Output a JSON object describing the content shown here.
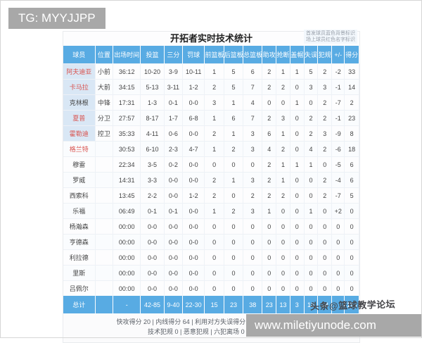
{
  "banner": {
    "text": "TG: MYYJJPP"
  },
  "site_bar": {
    "text": "www.miletiyunode.com"
  },
  "watermark": {
    "text": "头条@篮球教学论坛"
  },
  "colors": {
    "header_blue": "#58abe3",
    "starter_bg": "#d9e7f5",
    "on_court_red": "#d9534f",
    "banner_gray": "#a8a8a8"
  },
  "table": {
    "title": "开拓者实时技术统计",
    "legend_line1": "首发球员蓝色背景标识",
    "legend_line2": "场上球员红色名字标识",
    "columns": [
      "球员",
      "位置",
      "出场时间",
      "投篮",
      "三分",
      "罚球",
      "前篮板",
      "后篮板",
      "总篮板",
      "助攻",
      "抢断",
      "盖帽",
      "失误",
      "犯规",
      "+/-",
      "得分"
    ],
    "players": [
      {
        "name": "阿夫迪亚",
        "starter": true,
        "on_court": true,
        "cells": [
          "小前",
          "36:12",
          "10-20",
          "3-9",
          "10-11",
          "1",
          "5",
          "6",
          "2",
          "1",
          "1",
          "5",
          "2",
          "-2",
          "33"
        ]
      },
      {
        "name": "卡马拉",
        "starter": true,
        "on_court": true,
        "cells": [
          "大前",
          "34:15",
          "5-13",
          "3-11",
          "1-2",
          "2",
          "5",
          "7",
          "2",
          "2",
          "0",
          "3",
          "3",
          "-1",
          "14"
        ]
      },
      {
        "name": "克林根",
        "starter": true,
        "on_court": false,
        "cells": [
          "中锋",
          "17:31",
          "1-3",
          "0-1",
          "0-0",
          "3",
          "1",
          "4",
          "0",
          "0",
          "1",
          "0",
          "2",
          "-7",
          "2"
        ]
      },
      {
        "name": "夏普",
        "starter": true,
        "on_court": true,
        "cells": [
          "分卫",
          "27:57",
          "8-17",
          "1-7",
          "6-8",
          "1",
          "6",
          "7",
          "2",
          "3",
          "0",
          "2",
          "2",
          "-1",
          "23"
        ]
      },
      {
        "name": "霍勒迪",
        "starter": true,
        "on_court": true,
        "cells": [
          "控卫",
          "35:33",
          "4-11",
          "0-6",
          "0-0",
          "2",
          "1",
          "3",
          "6",
          "1",
          "0",
          "2",
          "3",
          "-9",
          "8"
        ]
      },
      {
        "name": "格兰特",
        "starter": false,
        "on_court": true,
        "cells": [
          "",
          "30:53",
          "6-10",
          "2-3",
          "4-7",
          "1",
          "2",
          "3",
          "4",
          "2",
          "0",
          "4",
          "2",
          "-6",
          "18"
        ]
      },
      {
        "name": "穆雷",
        "starter": false,
        "on_court": false,
        "cells": [
          "",
          "22:34",
          "3-5",
          "0-2",
          "0-0",
          "0",
          "0",
          "0",
          "2",
          "1",
          "1",
          "1",
          "0",
          "-5",
          "6"
        ]
      },
      {
        "name": "罗威",
        "starter": false,
        "on_court": false,
        "cells": [
          "",
          "14:31",
          "3-3",
          "0-0",
          "0-0",
          "2",
          "1",
          "3",
          "2",
          "1",
          "0",
          "0",
          "2",
          "-4",
          "6"
        ]
      },
      {
        "name": "西索科",
        "starter": false,
        "on_court": false,
        "cells": [
          "",
          "13:45",
          "2-2",
          "0-0",
          "1-2",
          "2",
          "0",
          "2",
          "2",
          "2",
          "0",
          "0",
          "2",
          "-7",
          "5"
        ]
      },
      {
        "name": "乐福",
        "starter": false,
        "on_court": false,
        "cells": [
          "",
          "06:49",
          "0-1",
          "0-1",
          "0-0",
          "1",
          "2",
          "3",
          "1",
          "0",
          "0",
          "1",
          "0",
          "+2",
          "0"
        ]
      },
      {
        "name": "杨瀚森",
        "starter": false,
        "on_court": false,
        "cells": [
          "",
          "00:00",
          "0-0",
          "0-0",
          "0-0",
          "0",
          "0",
          "0",
          "0",
          "0",
          "0",
          "0",
          "0",
          "0",
          "0"
        ]
      },
      {
        "name": "亨德森",
        "starter": false,
        "on_court": false,
        "cells": [
          "",
          "00:00",
          "0-0",
          "0-0",
          "0-0",
          "0",
          "0",
          "0",
          "0",
          "0",
          "0",
          "0",
          "0",
          "0",
          "0"
        ]
      },
      {
        "name": "利拉德",
        "starter": false,
        "on_court": false,
        "cells": [
          "",
          "00:00",
          "0-0",
          "0-0",
          "0-0",
          "0",
          "0",
          "0",
          "0",
          "0",
          "0",
          "0",
          "0",
          "0",
          "0"
        ]
      },
      {
        "name": "里斯",
        "starter": false,
        "on_court": false,
        "cells": [
          "",
          "00:00",
          "0-0",
          "0-0",
          "0-0",
          "0",
          "0",
          "0",
          "0",
          "0",
          "0",
          "0",
          "0",
          "0",
          "0"
        ]
      },
      {
        "name": "吕佩尔",
        "starter": false,
        "on_court": false,
        "cells": [
          "",
          "00:00",
          "0-0",
          "0-0",
          "0-0",
          "0",
          "0",
          "0",
          "0",
          "0",
          "0",
          "0",
          "0",
          "0",
          "0"
        ]
      }
    ],
    "total": {
      "name": "总计",
      "starter": false,
      "on_court": false,
      "cells": [
        "",
        "-",
        "42-85",
        "9-40",
        "22-30",
        "15",
        "23",
        "38",
        "23",
        "13",
        "3",
        "18",
        "18",
        "",
        "115"
      ]
    },
    "footer_line1": "快攻得分 20 | 内线得分 64 | 利用对方失误得分 18 | 最大领先分数 13",
    "footer_line2": "技术犯规 0 | 恶意犯规 | 六犯离场 0 | 被逐离场"
  }
}
